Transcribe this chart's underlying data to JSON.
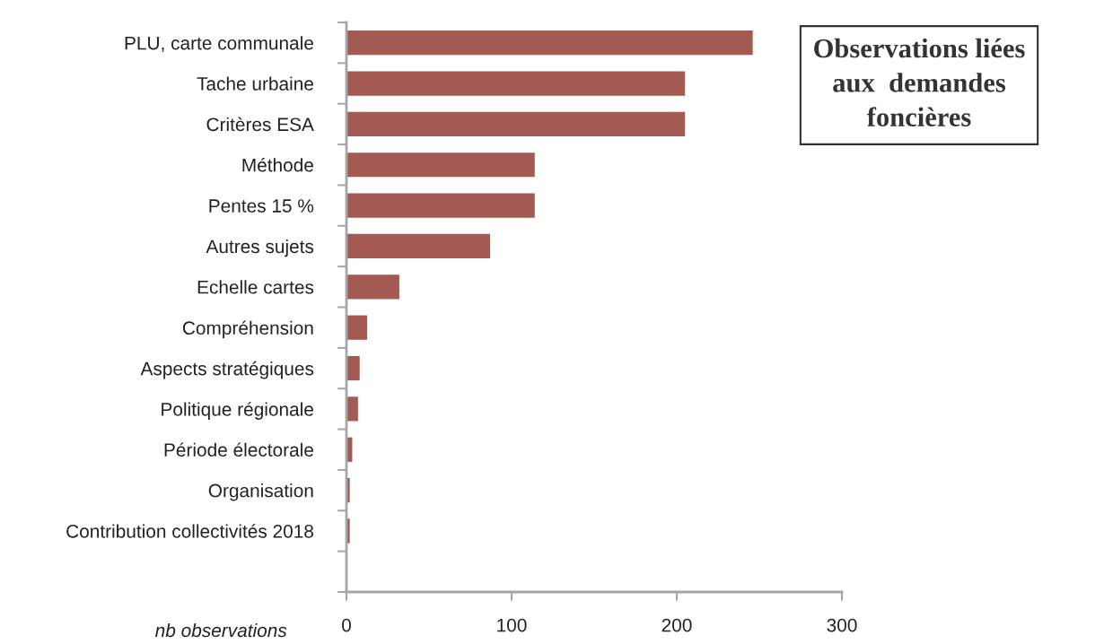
{
  "chart_data": {
    "type": "bar",
    "orientation": "horizontal",
    "title": "Observations liées\naux  demandes\nfoncières",
    "xlabel": "nb observations",
    "categories": [
      "PLU, carte communale",
      "Tache urbaine",
      "Critères ESA",
      "Méthode",
      "Pentes 15 %",
      "Autres sujets",
      "Echelle cartes",
      "Compréhension",
      "Aspects stratégiques",
      "Politique régionale",
      "Période électorale",
      "Organisation",
      "Contribution collectivités 2018",
      null
    ],
    "values": [
      246,
      205,
      205,
      114,
      114,
      87,
      32,
      12.5,
      8,
      7,
      3.5,
      2,
      2,
      null
    ],
    "color": "#a25a52",
    "xlim": [
      0,
      300
    ],
    "xticks": [
      0,
      100,
      200,
      300
    ],
    "grid": false
  }
}
